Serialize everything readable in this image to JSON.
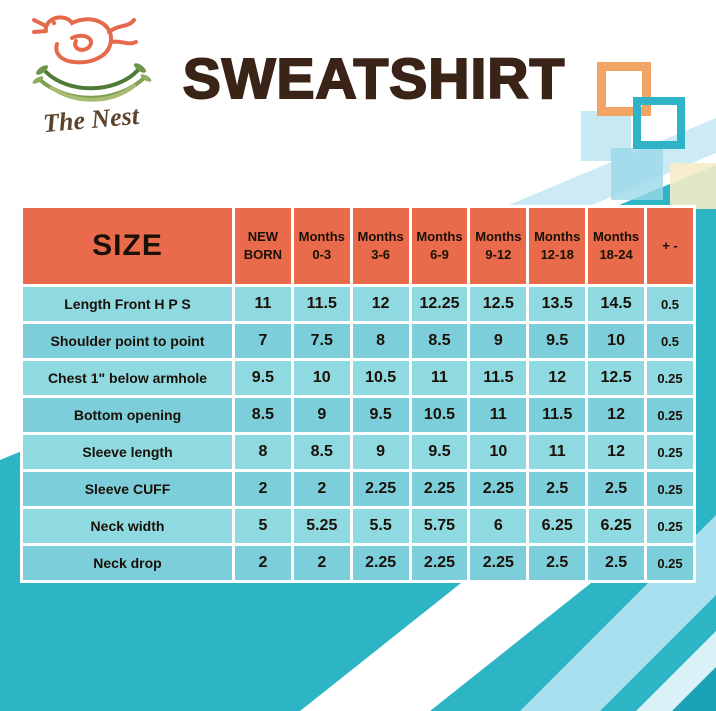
{
  "brand": {
    "name": "The Nest"
  },
  "title": "SWEATSHIRT",
  "colors": {
    "header_bg": "#E96B4B",
    "row_light": "#8FD9E0",
    "row_dark": "#7CCFDA",
    "accent_teal": "#2DB4C5",
    "title_color": "#3A2317"
  },
  "chart_data": {
    "type": "table",
    "title": "SWEATSHIRT",
    "corner_label": "SIZE",
    "units": "inches",
    "columns": [
      {
        "line1": "NEW",
        "line2": "BORN"
      },
      {
        "line1": "Months",
        "line2": "0-3"
      },
      {
        "line1": "Months",
        "line2": "3-6"
      },
      {
        "line1": "Months",
        "line2": "6-9"
      },
      {
        "line1": "Months",
        "line2": "9-12"
      },
      {
        "line1": "Months",
        "line2": "12-18"
      },
      {
        "line1": "Months",
        "line2": "18-24"
      },
      {
        "line1": "+ -",
        "line2": ""
      }
    ],
    "rows": [
      {
        "label": "Length Front H P S",
        "values": [
          "11",
          "11.5",
          "12",
          "12.25",
          "12.5",
          "13.5",
          "14.5",
          "0.5"
        ]
      },
      {
        "label": "Shoulder point to point",
        "values": [
          "7",
          "7.5",
          "8",
          "8.5",
          "9",
          "9.5",
          "10",
          "0.5"
        ]
      },
      {
        "label": "Chest 1\" below armhole",
        "values": [
          "9.5",
          "10",
          "10.5",
          "11",
          "11.5",
          "12",
          "12.5",
          "0.25"
        ]
      },
      {
        "label": "Bottom opening",
        "values": [
          "8.5",
          "9",
          "9.5",
          "10.5",
          "11",
          "11.5",
          "12",
          "0.25"
        ]
      },
      {
        "label": "Sleeve length",
        "values": [
          "8",
          "8.5",
          "9",
          "9.5",
          "10",
          "11",
          "12",
          "0.25"
        ]
      },
      {
        "label": "Sleeve CUFF",
        "values": [
          "2",
          "2",
          "2.25",
          "2.25",
          "2.25",
          "2.5",
          "2.5",
          "0.25"
        ]
      },
      {
        "label": "Neck width",
        "values": [
          "5",
          "5.25",
          "5.5",
          "5.75",
          "6",
          "6.25",
          "6.25",
          "0.25"
        ]
      },
      {
        "label": "Neck drop",
        "values": [
          "2",
          "2",
          "2.25",
          "2.25",
          "2.25",
          "2.5",
          "2.5",
          "0.25"
        ]
      }
    ]
  }
}
